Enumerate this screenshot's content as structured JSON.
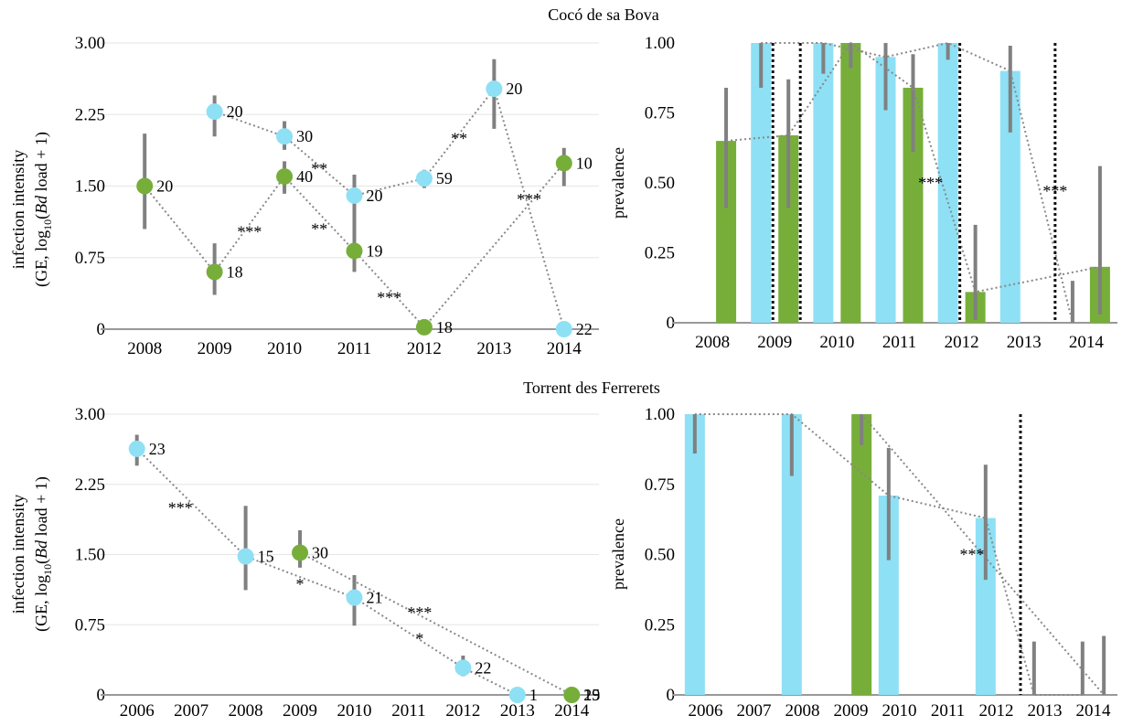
{
  "titles": {
    "top": "Cocó de sa Bova",
    "bottom": "Torrent des Ferrerets"
  },
  "ylabels": {
    "intensity_line1": "infection intensity",
    "intensity_line2_pre": "(GE, log",
    "intensity_line2_sub": "10",
    "intensity_line2_open": "(",
    "intensity_line2_italic": "Bd",
    "intensity_line2_post": " load + 1)",
    "prevalence": "prevalence"
  },
  "colors": {
    "blue": "#8EE0F5",
    "green": "#77AE3A",
    "err": "#808080",
    "dotted": "#888888",
    "axis": "#999999",
    "grid": "#e6e6e6"
  },
  "chart_data": [
    {
      "id": "top_left",
      "type": "scatter",
      "x_categories": [
        "2008",
        "2009",
        "2010",
        "2011",
        "2012",
        "2013",
        "2014"
      ],
      "ylim": [
        0,
        3.0
      ],
      "yticks": [
        "0",
        "0.75",
        "1.50",
        "2.25",
        "3.00"
      ],
      "ytick_values": [
        0,
        0.75,
        1.5,
        2.25,
        3.0
      ],
      "series": [
        {
          "color": "blue",
          "points": [
            {
              "x": "2009",
              "y": 2.28,
              "err": [
                2.02,
                2.45
              ],
              "label": "20"
            },
            {
              "x": "2010",
              "y": 2.02,
              "err": [
                1.88,
                2.18
              ],
              "label": "30"
            },
            {
              "x": "2011",
              "y": 1.4,
              "err": [
                0.76,
                1.62
              ],
              "label": "20"
            },
            {
              "x": "2012",
              "y": 1.58,
              "err": [
                1.48,
                1.67
              ],
              "label": "59"
            },
            {
              "x": "2013",
              "y": 2.52,
              "err": [
                2.1,
                2.83
              ],
              "label": "20"
            },
            {
              "x": "2014",
              "y": 0.0,
              "err": null,
              "label": "22"
            }
          ]
        },
        {
          "color": "green",
          "points": [
            {
              "x": "2008",
              "y": 1.5,
              "err": [
                1.05,
                2.05
              ],
              "label": "20"
            },
            {
              "x": "2009",
              "y": 0.6,
              "err": [
                0.36,
                0.9
              ],
              "label": "18"
            },
            {
              "x": "2010",
              "y": 1.6,
              "err": [
                1.42,
                1.76
              ],
              "label": "40"
            },
            {
              "x": "2011",
              "y": 0.82,
              "err": [
                0.6,
                1.02
              ],
              "label": "19"
            },
            {
              "x": "2012",
              "y": 0.02,
              "err": null,
              "label": "18"
            },
            {
              "x": "2014",
              "y": 1.74,
              "err": [
                1.5,
                1.9
              ],
              "label": "10"
            }
          ]
        }
      ],
      "annotations": [
        {
          "text": "***",
          "x": "2009.5",
          "y": 1.02
        },
        {
          "text": "**",
          "x": "2010.5",
          "y": 1.68
        },
        {
          "text": "**",
          "x": "2010.5",
          "y": 1.05
        },
        {
          "text": "***",
          "x": "2011.5",
          "y": 0.33
        },
        {
          "text": "**",
          "x": "2012.5",
          "y": 2.0
        },
        {
          "text": "***",
          "x": "2013.5",
          "y": 1.36
        }
      ]
    },
    {
      "id": "top_right",
      "type": "bar",
      "x_categories": [
        "2008",
        "2009",
        "2010",
        "2011",
        "2012",
        "2013",
        "2014"
      ],
      "ylim": [
        0,
        1.0
      ],
      "yticks": [
        "0",
        "0.25",
        "0.50",
        "0.75",
        "1.00"
      ],
      "ytick_values": [
        0,
        0.25,
        0.5,
        0.75,
        1.0
      ],
      "bars": [
        {
          "x": "2008",
          "blue": null,
          "blue_err": null,
          "green": 0.65,
          "green_err": [
            0.41,
            0.84
          ]
        },
        {
          "x": "2009",
          "blue": 1.0,
          "blue_err": [
            0.84,
            1.0
          ],
          "green": 0.67,
          "green_err": [
            0.41,
            0.87
          ]
        },
        {
          "x": "2010",
          "blue": 1.0,
          "blue_err": [
            0.89,
            1.0
          ],
          "green": 1.0,
          "green_err": [
            0.91,
            1.0
          ]
        },
        {
          "x": "2011",
          "blue": 0.95,
          "blue_err": [
            0.76,
            1.0
          ],
          "green": 0.84,
          "green_err": [
            0.61,
            0.96
          ]
        },
        {
          "x": "2012",
          "blue": 1.0,
          "blue_err": [
            0.94,
            1.0
          ],
          "green": 0.11,
          "green_err": [
            0.01,
            0.35
          ]
        },
        {
          "x": "2013",
          "blue": 0.9,
          "blue_err": [
            0.68,
            0.99
          ],
          "green": null,
          "green_err": null
        },
        {
          "x": "2014",
          "blue": 0.0,
          "blue_err": [
            0.0,
            0.15
          ],
          "green": 0.2,
          "green_err": [
            0.03,
            0.56
          ]
        }
      ],
      "dotted_blue": [
        [
          "2009",
          1.0
        ],
        [
          "2010",
          1.0
        ],
        [
          "2011",
          0.95
        ],
        [
          "2012",
          1.0
        ],
        [
          "2013",
          0.9
        ],
        [
          "2014",
          0.0
        ]
      ],
      "dotted_green": [
        [
          "2008",
          0.65
        ],
        [
          "2009",
          0.67
        ],
        [
          "2010",
          1.0
        ],
        [
          "2011",
          0.84
        ],
        [
          "2012",
          0.11
        ],
        [
          "2014",
          0.2
        ]
      ],
      "vlines_after": [
        "2009-blue",
        "2009-green",
        "2012-blue",
        "2013"
      ],
      "annotations": [
        {
          "text": "***",
          "x": "2011.5",
          "y": 0.5
        },
        {
          "text": "***",
          "x": "2013.5",
          "y": 0.47
        }
      ]
    },
    {
      "id": "bottom_left",
      "type": "scatter",
      "x_categories": [
        "2006",
        "2007",
        "2008",
        "2009",
        "2010",
        "2011",
        "2012",
        "2013",
        "2014"
      ],
      "ylim": [
        0,
        3.0
      ],
      "yticks": [
        "0",
        "0.75",
        "1.50",
        "2.25",
        "3.00"
      ],
      "ytick_values": [
        0,
        0.75,
        1.5,
        2.25,
        3.0
      ],
      "series": [
        {
          "color": "blue",
          "points": [
            {
              "x": "2006",
              "y": 2.63,
              "err": [
                2.45,
                2.78
              ],
              "label": "23"
            },
            {
              "x": "2008",
              "y": 1.48,
              "err": [
                1.12,
                2.02
              ],
              "label": "15"
            },
            {
              "x": "2010",
              "y": 1.04,
              "err": [
                0.74,
                1.28
              ],
              "label": "21"
            },
            {
              "x": "2012",
              "y": 0.29,
              "err": [
                0.2,
                0.42
              ],
              "label": "22"
            },
            {
              "x": "2013",
              "y": 0.0,
              "err": null,
              "label": "1"
            },
            {
              "x": "2014",
              "y": 0.0,
              "err": null,
              "label": "29"
            }
          ]
        },
        {
          "color": "green",
          "points": [
            {
              "x": "2009",
              "y": 1.52,
              "err": [
                1.36,
                1.76
              ],
              "label": "30"
            },
            {
              "x": "2014",
              "y": 0.0,
              "err": null,
              "label": "15"
            }
          ]
        }
      ],
      "dotted_blue": [
        [
          "2006",
          2.63
        ],
        [
          "2008",
          1.48
        ],
        [
          "2010",
          1.04
        ],
        [
          "2012",
          0.29
        ],
        [
          "2013",
          0.0
        ]
      ],
      "dotted_green": [
        [
          "2009",
          1.52
        ],
        [
          "2014",
          0.0
        ]
      ],
      "annotations": [
        {
          "text": "***",
          "x": "2006.8",
          "y": 2.0
        },
        {
          "text": "*",
          "x": "2009",
          "y": 1.18
        },
        {
          "text": "***",
          "x": "2011.2",
          "y": 0.88
        },
        {
          "text": "*",
          "x": "2011.2",
          "y": 0.6
        }
      ]
    },
    {
      "id": "bottom_right",
      "type": "bar",
      "x_categories": [
        "2006",
        "2007",
        "2008",
        "2009",
        "2010",
        "2011",
        "2012",
        "2013",
        "2014"
      ],
      "ylim": [
        0,
        1.0
      ],
      "yticks": [
        "0",
        "0.25",
        "0.50",
        "0.75",
        "1.00"
      ],
      "ytick_values": [
        0,
        0.25,
        0.5,
        0.75,
        1.0
      ],
      "bars": [
        {
          "x": "2006",
          "blue": 1.0,
          "blue_err": [
            0.86,
            1.0
          ],
          "green": null,
          "green_err": null
        },
        {
          "x": "2008",
          "blue": 1.0,
          "blue_err": [
            0.78,
            1.0
          ],
          "green": null,
          "green_err": null
        },
        {
          "x": "2009",
          "blue": null,
          "blue_err": null,
          "green": 1.0,
          "green_err": [
            0.89,
            1.0
          ]
        },
        {
          "x": "2010",
          "blue": 0.71,
          "blue_err": [
            0.48,
            0.88
          ],
          "green": null,
          "green_err": null
        },
        {
          "x": "2012",
          "blue": 0.63,
          "blue_err": [
            0.41,
            0.82
          ],
          "green": null,
          "green_err": null
        },
        {
          "x": "2013",
          "blue": 0.0,
          "blue_err": [
            0.0,
            0.19
          ],
          "green": null,
          "green_err": null
        },
        {
          "x": "2014",
          "blue": 0.0,
          "blue_err": [
            0.0,
            0.19
          ],
          "green": 0.0,
          "green_err": [
            0.0,
            0.21
          ]
        }
      ],
      "dotted_blue": [
        [
          "2006",
          1.0
        ],
        [
          "2008",
          1.0
        ],
        [
          "2010",
          0.71
        ],
        [
          "2012",
          0.63
        ],
        [
          "2013",
          0.0
        ],
        [
          "2014",
          0.0
        ]
      ],
      "dotted_green": [
        [
          "2009",
          1.0
        ],
        [
          "2014",
          0.0
        ]
      ],
      "vlines_after": [
        "2012"
      ],
      "annotations": [
        {
          "text": "***",
          "x": "2011.5",
          "y": 0.5
        }
      ]
    }
  ]
}
